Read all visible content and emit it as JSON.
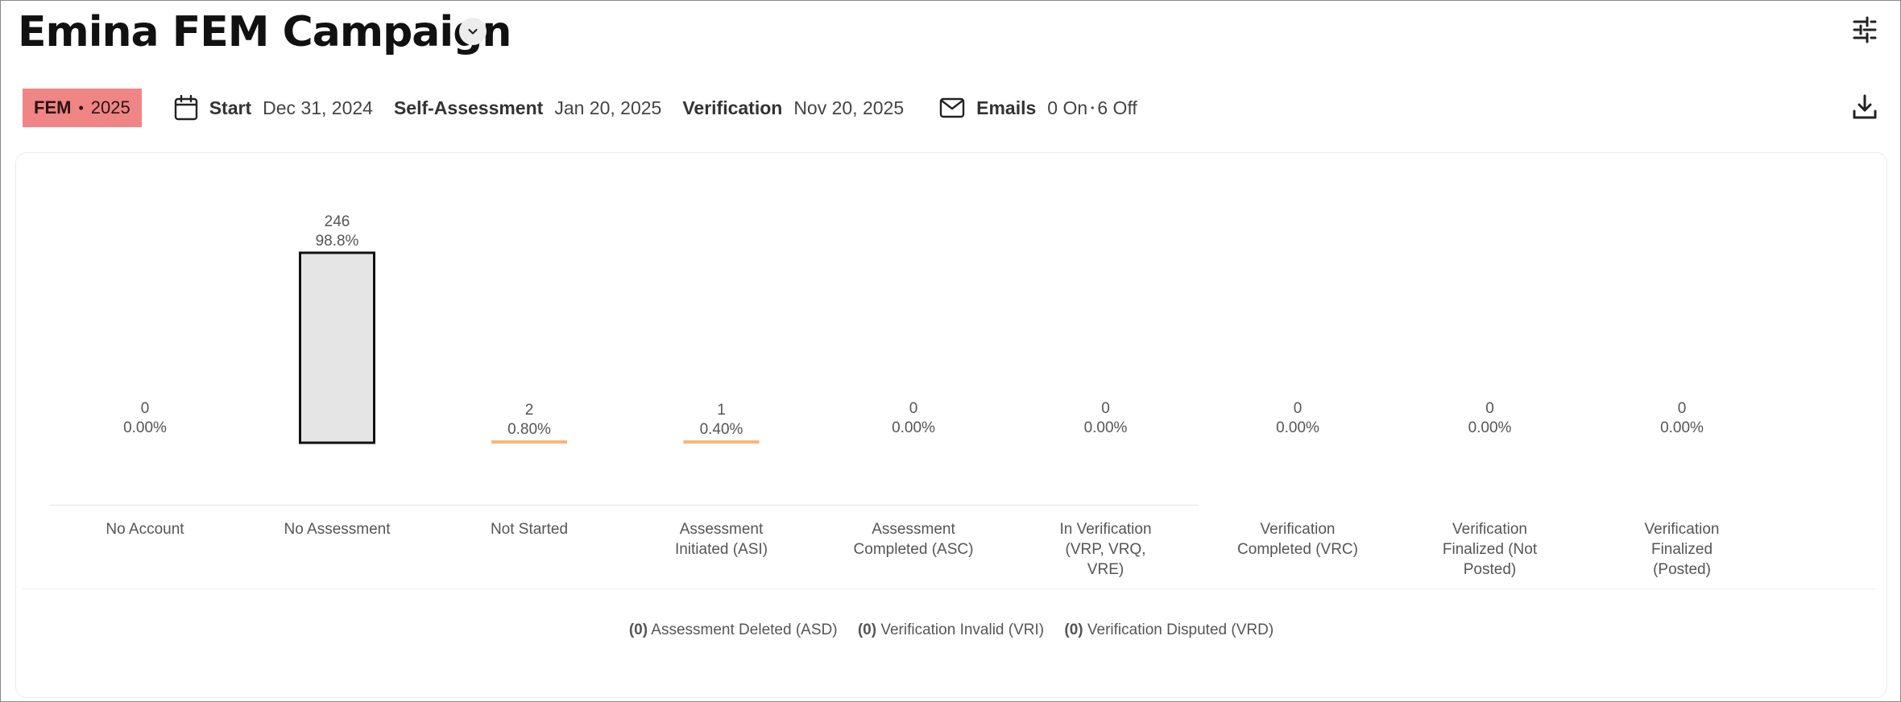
{
  "header": {
    "title": "Emina FEM Campaign"
  },
  "meta": {
    "tag_program": "FEM",
    "tag_year": "2025",
    "start_label": "Start",
    "start_value": "Dec 31, 2024",
    "self_assessment_label": "Self-Assessment",
    "self_assessment_value": "Jan 20, 2025",
    "verification_label": "Verification",
    "verification_value": "Nov 20, 2025",
    "emails_label": "Emails",
    "emails_on": "0 On",
    "emails_off": "6 Off"
  },
  "icons": {
    "title_dropdown": "chevron-down-icon",
    "settings": "sliders-icon",
    "download": "download-icon",
    "calendar": "calendar-icon",
    "mail": "mail-icon"
  },
  "colors": {
    "tag_bg": "#ef8585",
    "bar_fill": "#e5e5e5",
    "bar_stroke": "#111111",
    "small_bar": "#f6b774"
  },
  "chart_data": {
    "type": "bar",
    "categories": [
      "No Account",
      "No Assessment",
      "Not Started",
      "Assessment Initiated (ASI)",
      "Assessment Completed (ASC)",
      "In Verification (VRP, VRQ, VRE)",
      "Verification Completed (VRC)",
      "Verification Finalized (Not Posted)",
      "Verification Finalized (Posted)"
    ],
    "values": [
      0,
      246,
      2,
      1,
      0,
      0,
      0,
      0,
      0
    ],
    "percent_labels": [
      "0.00%",
      "98.8%",
      "0.80%",
      "0.40%",
      "0.00%",
      "0.00%",
      "0.00%",
      "0.00%",
      "0.00%"
    ],
    "ylim": [
      0,
      246
    ]
  },
  "footer": {
    "items": [
      {
        "count": "(0)",
        "label": "Assessment Deleted (ASD)"
      },
      {
        "count": "(0)",
        "label": "Verification Invalid (VRI)"
      },
      {
        "count": "(0)",
        "label": "Verification Disputed (VRD)"
      }
    ]
  }
}
